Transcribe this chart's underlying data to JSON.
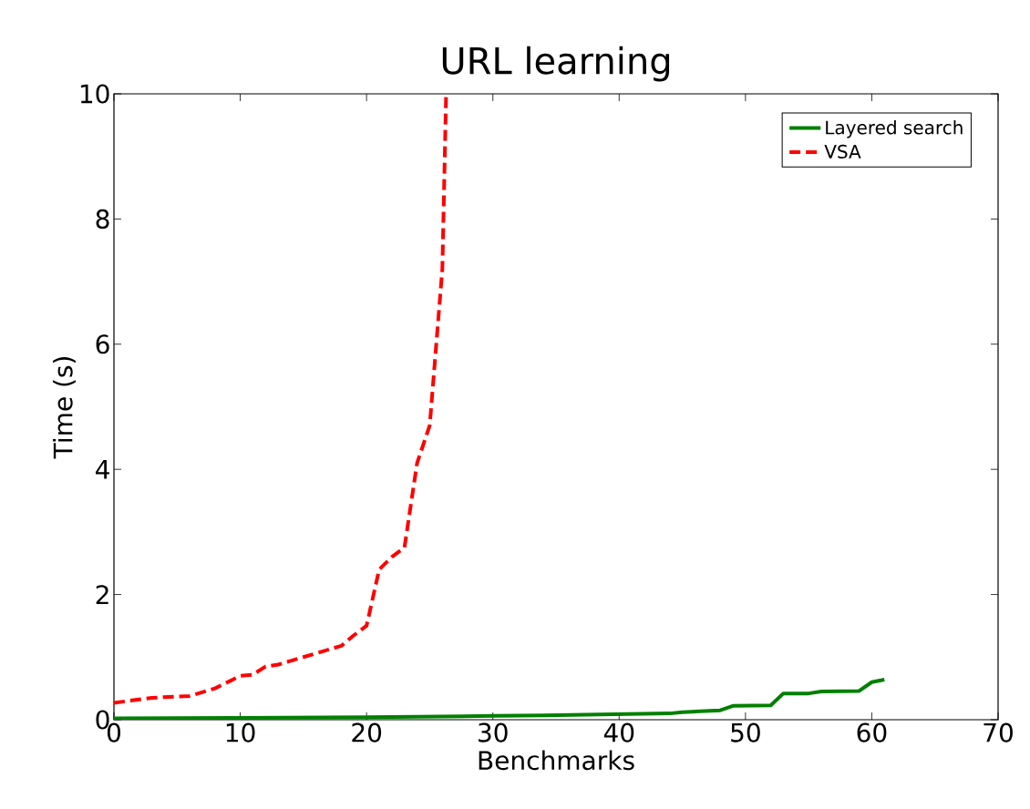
{
  "chart_data": {
    "type": "line",
    "title": "URL learning",
    "xlabel": "Benchmarks",
    "ylabel": "Time (s)",
    "xlim": [
      0,
      70
    ],
    "ylim": [
      0,
      10
    ],
    "xticks": [
      0,
      10,
      20,
      30,
      40,
      50,
      60,
      70
    ],
    "yticks": [
      0,
      2,
      4,
      6,
      8,
      10
    ],
    "grid": false,
    "legend": "top right",
    "series": [
      {
        "name": "Layered search",
        "color": "#008000",
        "line_style": "solid",
        "x": [
          0,
          10,
          20,
          30,
          34,
          44,
          45,
          48,
          49,
          52,
          53,
          55,
          56,
          59,
          60,
          61
        ],
        "values": [
          0.02,
          0.03,
          0.04,
          0.06,
          0.07,
          0.1,
          0.12,
          0.15,
          0.22,
          0.23,
          0.42,
          0.42,
          0.45,
          0.46,
          0.6,
          0.64
        ]
      },
      {
        "name": "VSA",
        "color": "#ff0000",
        "line_style": "dashed",
        "x": [
          0,
          3,
          6,
          8,
          10,
          11,
          12,
          13,
          15,
          18,
          19,
          20,
          21,
          22,
          23,
          24,
          25,
          26,
          26.3
        ],
        "values": [
          0.27,
          0.35,
          0.38,
          0.5,
          0.7,
          0.72,
          0.85,
          0.88,
          1.0,
          1.18,
          1.35,
          1.5,
          2.4,
          2.6,
          2.75,
          4.1,
          4.7,
          7.2,
          10
        ]
      }
    ]
  }
}
